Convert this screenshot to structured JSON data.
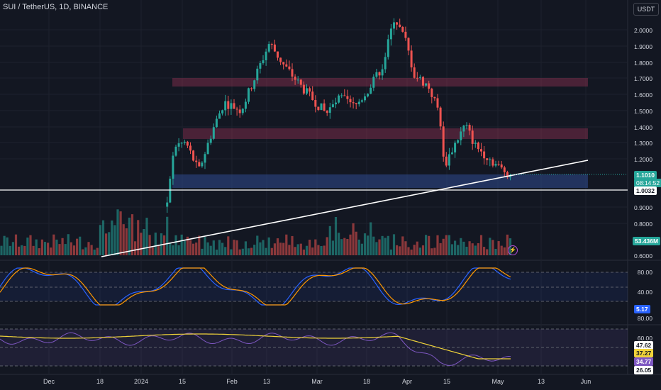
{
  "header": {
    "symbol": "SUI / TetherUS, 1D, BINANCE",
    "currency_button": "USDT"
  },
  "price_axis_labels": [
    "2.0000",
    "1.9000",
    "1.8000",
    "1.7000",
    "1.6000",
    "1.5000",
    "1.4000",
    "1.3000",
    "1.2000",
    "0.9000",
    "0.8000",
    "0.6000"
  ],
  "price_tag": {
    "value": "1.1010",
    "countdown": "08:14:52",
    "color": "#26a69a"
  },
  "line_tag": {
    "value": "1.0032"
  },
  "volume_tag": {
    "value": "53.436M",
    "color": "#26a69a"
  },
  "stoch_axis": [
    "80.00",
    "40.00"
  ],
  "stoch_tag": {
    "value": "5.17",
    "color": "#2962ff"
  },
  "rsi_axis": [
    "80.00",
    "60.00"
  ],
  "rsi_tags": [
    {
      "value": "47.62",
      "bg": "#ffffff",
      "fg": "#131722"
    },
    {
      "value": "37.27",
      "bg": "#f0d33a",
      "fg": "#131722"
    },
    {
      "value": "34.77",
      "bg": "#7e57c2",
      "fg": "#ffffff"
    },
    {
      "value": "26.05",
      "bg": "#ffffff",
      "fg": "#131722"
    }
  ],
  "time_axis_labels": [
    "Dec",
    "18",
    "2024",
    "15",
    "Feb",
    "13",
    "Mar",
    "18",
    "Apr",
    "15",
    "May",
    "13",
    "Jun"
  ],
  "colors": {
    "up": "#26a69a",
    "down": "#ef5350",
    "background": "#131722"
  }
}
